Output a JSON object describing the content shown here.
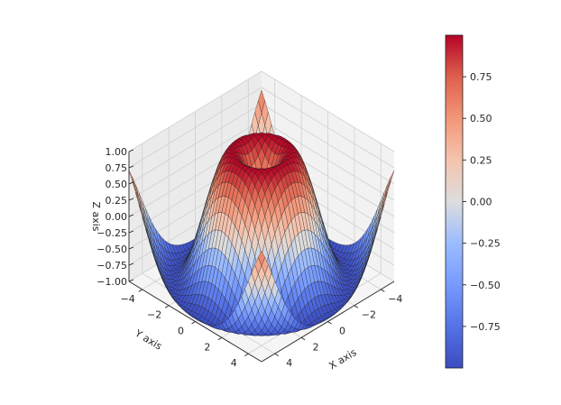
{
  "chart_data": {
    "type": "surface3d",
    "function": "z = sin(sqrt(x^2 + y^2))",
    "colormap": "coolwarm",
    "x": {
      "label": "X axis",
      "range": [
        -5,
        5
      ],
      "ticks": [
        -4,
        -2,
        0,
        2,
        4
      ],
      "tick_labels": [
        "−4",
        "−2",
        "0",
        "2",
        "4"
      ]
    },
    "y": {
      "label": "Y axis",
      "range": [
        -5,
        5
      ],
      "ticks": [
        -4,
        -2,
        0,
        2,
        4
      ],
      "tick_labels": [
        "−4",
        "−2",
        "0",
        "2",
        "4"
      ]
    },
    "z": {
      "label": "Z axis",
      "range": [
        -1,
        1
      ],
      "ticks": [
        -1,
        -0.75,
        -0.5,
        -0.25,
        0,
        0.25,
        0.5,
        0.75,
        1
      ],
      "tick_labels": [
        "−1.00",
        "−0.75",
        "−0.50",
        "−0.25",
        "0.00",
        "0.25",
        "0.50",
        "0.75",
        "1.00"
      ]
    },
    "colorbar": {
      "range": [
        -0.9998,
        0.9998
      ],
      "ticks": [
        -0.75,
        -0.5,
        -0.25,
        0,
        0.25,
        0.5,
        0.75
      ],
      "tick_labels": [
        "−0.75",
        "−0.50",
        "−0.25",
        "0.00",
        "0.25",
        "0.50",
        "0.75"
      ]
    },
    "grid": true,
    "legend": "colorbar right"
  }
}
